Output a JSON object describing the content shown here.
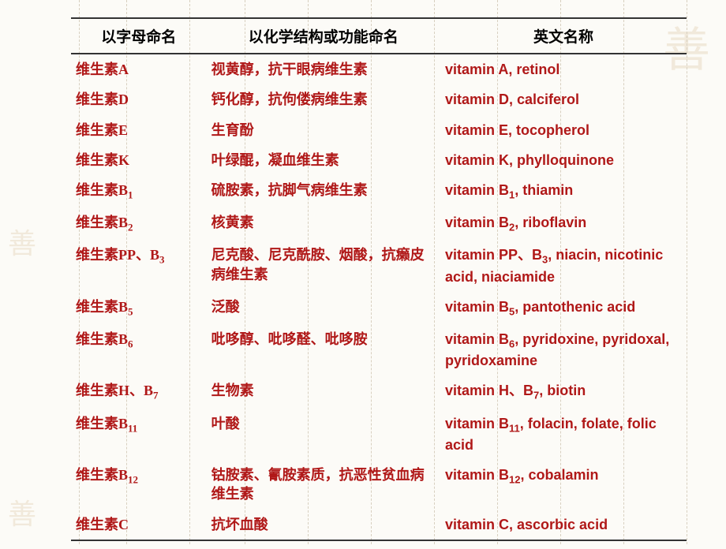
{
  "headers": {
    "col1": "以字母命名",
    "col2": "以化学结构或功能命名",
    "col3": "英文名称"
  },
  "rows": [
    {
      "c1": "维生素A",
      "c2": "视黄醇，抗干眼病维生素",
      "c3": "vitamin A, retinol"
    },
    {
      "c1": "维生素D",
      "c2": "钙化醇，抗佝偻病维生素",
      "c3": "vitamin D, calciferol"
    },
    {
      "c1": "维生素E",
      "c2": "生育酚",
      "c3": "vitamin E, tocopherol"
    },
    {
      "c1": "维生素K",
      "c2": "叶绿醌，凝血维生素",
      "c3": "vitamin K, phylloquinone"
    },
    {
      "c1": "维生素B₁",
      "c2": "硫胺素，抗脚气病维生素",
      "c3": "vitamin B₁, thiamin"
    },
    {
      "c1": "维生素B₂",
      "c2": "核黄素",
      "c3": "vitamin B₂, riboflavin"
    },
    {
      "c1": "维生素PP、B₃",
      "c2": "尼克酸、尼克酰胺、烟酸，抗癞皮病维生素",
      "c3": "vitamin PP、B₃, niacin, nicotinic acid, niaciamide"
    },
    {
      "c1": "维生素B₅",
      "c2": "泛酸",
      "c3": "vitamin B₅, pantothenic acid"
    },
    {
      "c1": "维生素B₆",
      "c2": "吡哆醇、吡哆醛、吡哆胺",
      "c3": "vitamin B₆, pyridoxine, pyridoxal, pyridoxamine"
    },
    {
      "c1": "维生素H、B₇",
      "c2": "生物素",
      "c3": "vitamin H、B₇, biotin"
    },
    {
      "c1": "维生素B₁₁",
      "c2": "叶酸",
      "c3": "vitamin B₁₁, folacin, folate, folic acid"
    },
    {
      "c1": "维生素B₁₂",
      "c2": "钴胺素、氰胺素质，抗恶性贫血病维生素",
      "c3": "vitamin B₁₂, cobalamin"
    },
    {
      "c1": "维生素C",
      "c2": "抗坏血酸",
      "c3": "vitamin C, ascorbic acid"
    }
  ],
  "watermarks": {
    "tr": "善",
    "ml": "善",
    "bl": "善"
  },
  "grid_positions": [
    100,
    160,
    240,
    310,
    390,
    470,
    550,
    630,
    710,
    790,
    870
  ],
  "style": {
    "text_color": "#b01818",
    "header_color": "#000000",
    "border_color": "#333333",
    "bg_color": "#fcfbf7",
    "cell_font_size": 18,
    "header_font_size": 19
  }
}
